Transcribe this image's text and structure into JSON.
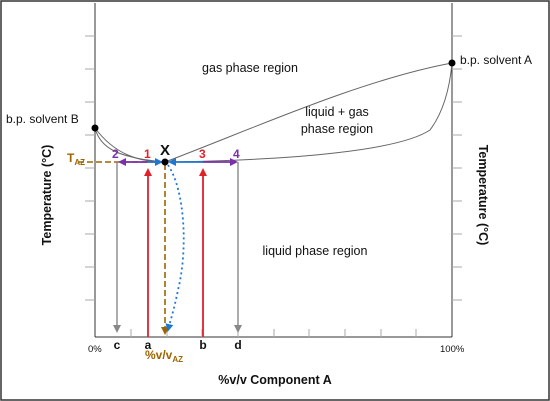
{
  "labels": {
    "gas_region": "gas phase region",
    "liquid_gas_region_line1": "liquid + gas",
    "liquid_gas_region_line2": "phase region",
    "liquid_region": "liquid phase region",
    "bp_solvent_a": "b.p. solvent A",
    "bp_solvent_b": "b.p. solvent B",
    "azeotrope_point": "X",
    "t_az_main": "T",
    "t_az_sub": "AZ",
    "y_axis_left": "Temperature (°C)",
    "y_axis_right": "Temperature (°C)",
    "x_axis": "%v/v Component A",
    "x_min": "0%",
    "x_max": "100%",
    "az_comp_main": "%v/v",
    "az_comp_sub": "AZ",
    "tick_c": "c",
    "tick_a": "a",
    "tick_b": "b",
    "tick_d": "d",
    "num_1": "1",
    "num_2": "2",
    "num_3": "3",
    "num_4": "4"
  },
  "colors": {
    "frame": "#333333",
    "curve": "#666666",
    "grid": "#aaaaaa",
    "red": "#e2202a",
    "purple": "#7b2fa8",
    "blue": "#1f77d0",
    "gray_arrow": "#888888",
    "brown": "#9c6500"
  }
}
